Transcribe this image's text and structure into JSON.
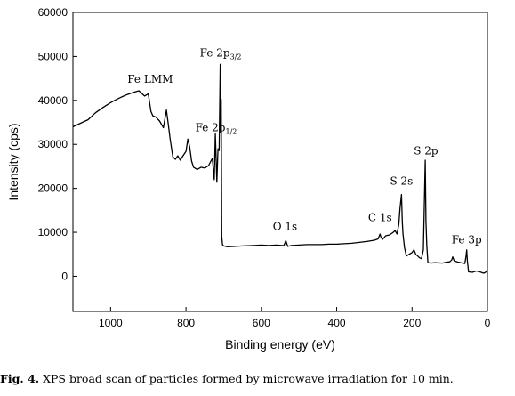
{
  "caption": {
    "label": "Fig. 4.",
    "text": "XPS broad scan of particles formed by microwave irradiation for 10 min."
  },
  "chart_data": {
    "type": "line",
    "title": "",
    "xlabel": "Binding energy (eV)",
    "ylabel": "Intensity (cps)",
    "xlim": [
      1100,
      0
    ],
    "ylim": [
      -8000,
      60000
    ],
    "x_reversed": true,
    "grid": false,
    "x_ticks": [
      1000,
      800,
      600,
      400,
      200,
      0
    ],
    "y_ticks": [
      0,
      10000,
      20000,
      30000,
      40000,
      50000,
      60000
    ],
    "color": "#000000",
    "series": [
      {
        "x": [
          1100,
          1080,
          1060,
          1040,
          1020,
          1000,
          980,
          960,
          940,
          925,
          910,
          900,
          893,
          888,
          880,
          870,
          860,
          852,
          848,
          842,
          835,
          828,
          822,
          815,
          808,
          800,
          795,
          790,
          785,
          780,
          770,
          760,
          750,
          740,
          730,
          725,
          722,
          718,
          715,
          712,
          709,
          708,
          706.5,
          705,
          703,
          700,
          690,
          670,
          650,
          620,
          600,
          580,
          560,
          545,
          540,
          535,
          530,
          520,
          500,
          480,
          460,
          440,
          420,
          400,
          380,
          360,
          340,
          320,
          300,
          290,
          285,
          282,
          278,
          270,
          260,
          250,
          245,
          240,
          235,
          232,
          228,
          226,
          224,
          220,
          215,
          210,
          200,
          195,
          190,
          185,
          180,
          175,
          170,
          165,
          163,
          161,
          158,
          150,
          140,
          120,
          110,
          100,
          95,
          92,
          88,
          80,
          70,
          60,
          57,
          55,
          53,
          50,
          40,
          30,
          20,
          10,
          5,
          0
        ],
        "values": [
          34000,
          34800,
          35600,
          37200,
          38400,
          39500,
          40400,
          41200,
          41800,
          42200,
          41000,
          41500,
          37500,
          36500,
          36200,
          35300,
          33800,
          37800,
          35200,
          31200,
          27200,
          26600,
          27400,
          26400,
          27400,
          28400,
          31200,
          29400,
          26200,
          24800,
          24300,
          24800,
          24600,
          25200,
          26800,
          22000,
          32400,
          21400,
          29000,
          28600,
          48200,
          33400,
          40200,
          9000,
          7200,
          6900,
          6700,
          6800,
          6900,
          7000,
          7100,
          7000,
          7100,
          7000,
          7000,
          8100,
          6800,
          7000,
          7100,
          7200,
          7200,
          7200,
          7300,
          7300,
          7400,
          7500,
          7700,
          7900,
          8200,
          8500,
          9600,
          8800,
          8400,
          9200,
          9400,
          10000,
          10400,
          9600,
          11800,
          15400,
          18600,
          12400,
          9600,
          6500,
          4600,
          4900,
          5400,
          6000,
          5000,
          4600,
          4200,
          4000,
          6000,
          26400,
          12600,
          7200,
          3100,
          3000,
          3100,
          3000,
          3200,
          3300,
          3700,
          4400,
          3500,
          3300,
          3100,
          2900,
          4500,
          6000,
          3400,
          1000,
          900,
          1200,
          1000,
          700,
          900,
          1500
        ]
      }
    ],
    "annotations": [
      {
        "text": "Fe LMM",
        "x": 895,
        "y": 44000
      },
      {
        "main": "Fe 2p",
        "sub": "3/2",
        "x": 708,
        "y": 50000
      },
      {
        "main": "Fe 2p",
        "sub": "1/2",
        "x": 720,
        "y": 33000
      },
      {
        "text": "O 1s",
        "x": 537,
        "y": 10500
      },
      {
        "text": "C 1s",
        "x": 285,
        "y": 12500
      },
      {
        "text": "S 2s",
        "x": 228,
        "y": 20800
      },
      {
        "text": "S 2p",
        "x": 163,
        "y": 27700
      },
      {
        "text": "Fe 3p",
        "x": 55,
        "y": 7500
      }
    ]
  }
}
